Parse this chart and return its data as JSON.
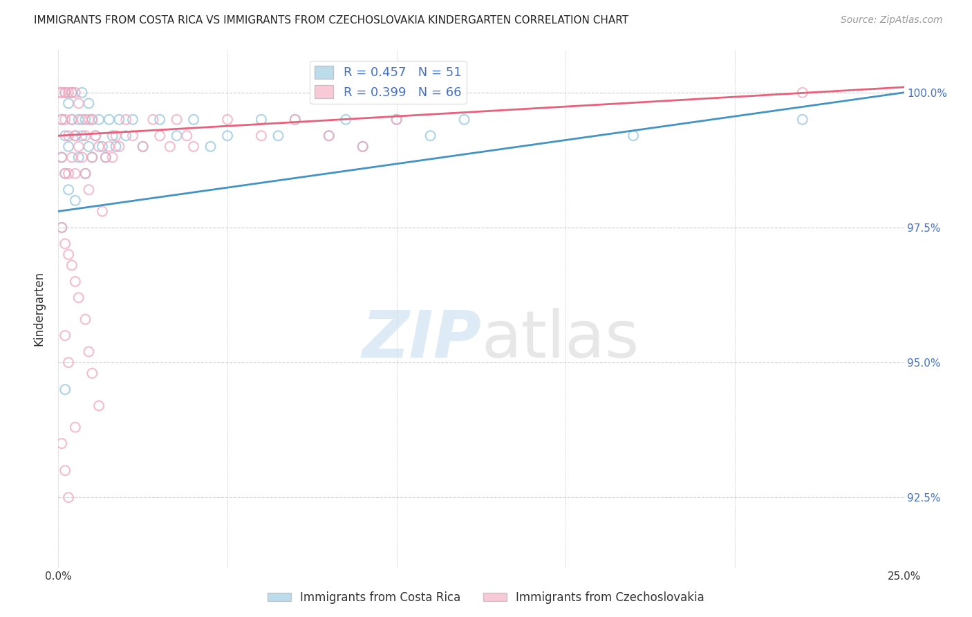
{
  "title": "IMMIGRANTS FROM COSTA RICA VS IMMIGRANTS FROM CZECHOSLOVAKIA KINDERGARTEN CORRELATION CHART",
  "source": "Source: ZipAtlas.com",
  "ylabel": "Kindergarten",
  "yticks": [
    92.5,
    95.0,
    97.5,
    100.0
  ],
  "ytick_labels": [
    "92.5%",
    "95.0%",
    "97.5%",
    "100.0%"
  ],
  "xmin": 0.0,
  "xmax": 0.25,
  "ymin": 91.2,
  "ymax": 100.8,
  "legend_blue_r": "R = 0.457",
  "legend_blue_n": "N = 51",
  "legend_pink_r": "R = 0.399",
  "legend_pink_n": "N = 66",
  "blue_color": "#92c5de",
  "pink_color": "#f4a6bc",
  "blue_line_color": "#4393c3",
  "pink_line_color": "#e8607a",
  "blue_line_x0": 0.0,
  "blue_line_y0": 97.8,
  "blue_line_x1": 0.25,
  "blue_line_y1": 100.0,
  "pink_line_x0": 0.0,
  "pink_line_y0": 99.2,
  "pink_line_x1": 0.25,
  "pink_line_y1": 100.1,
  "blue_scatter_x": [
    0.001,
    0.001,
    0.002,
    0.002,
    0.002,
    0.003,
    0.003,
    0.003,
    0.004,
    0.004,
    0.005,
    0.005,
    0.006,
    0.006,
    0.007,
    0.007,
    0.008,
    0.008,
    0.009,
    0.009,
    0.01,
    0.01,
    0.011,
    0.012,
    0.013,
    0.014,
    0.015,
    0.016,
    0.017,
    0.018,
    0.02,
    0.022,
    0.025,
    0.03,
    0.035,
    0.04,
    0.045,
    0.05,
    0.06,
    0.065,
    0.07,
    0.08,
    0.085,
    0.09,
    0.1,
    0.11,
    0.12,
    0.17,
    0.22,
    0.001,
    0.002
  ],
  "blue_scatter_y": [
    99.5,
    98.8,
    100.0,
    99.2,
    98.5,
    99.8,
    99.0,
    98.2,
    100.0,
    99.5,
    99.2,
    98.0,
    99.5,
    98.8,
    100.0,
    99.2,
    99.5,
    98.5,
    99.8,
    99.0,
    99.5,
    98.8,
    99.2,
    99.5,
    99.0,
    98.8,
    99.5,
    99.2,
    99.0,
    99.5,
    99.2,
    99.5,
    99.0,
    99.5,
    99.2,
    99.5,
    99.0,
    99.2,
    99.5,
    99.2,
    99.5,
    99.2,
    99.5,
    99.0,
    99.5,
    99.2,
    99.5,
    99.2,
    99.5,
    97.5,
    94.5
  ],
  "pink_scatter_x": [
    0.0005,
    0.001,
    0.001,
    0.001,
    0.002,
    0.002,
    0.002,
    0.003,
    0.003,
    0.003,
    0.004,
    0.004,
    0.004,
    0.005,
    0.005,
    0.005,
    0.006,
    0.006,
    0.007,
    0.007,
    0.008,
    0.008,
    0.009,
    0.009,
    0.01,
    0.01,
    0.011,
    0.012,
    0.013,
    0.014,
    0.015,
    0.016,
    0.017,
    0.018,
    0.02,
    0.022,
    0.025,
    0.028,
    0.03,
    0.033,
    0.035,
    0.038,
    0.04,
    0.05,
    0.06,
    0.07,
    0.08,
    0.09,
    0.1,
    0.22,
    0.001,
    0.002,
    0.003,
    0.004,
    0.005,
    0.006,
    0.008,
    0.009,
    0.01,
    0.012,
    0.001,
    0.002,
    0.003,
    0.005,
    0.002,
    0.003
  ],
  "pink_scatter_y": [
    100.0,
    100.0,
    99.5,
    98.8,
    100.0,
    99.5,
    98.5,
    100.0,
    99.2,
    98.5,
    100.0,
    99.5,
    98.8,
    100.0,
    99.2,
    98.5,
    99.8,
    99.0,
    99.5,
    98.8,
    99.2,
    98.5,
    99.5,
    98.2,
    99.5,
    98.8,
    99.2,
    99.0,
    97.8,
    98.8,
    99.0,
    98.8,
    99.2,
    99.0,
    99.5,
    99.2,
    99.0,
    99.5,
    99.2,
    99.0,
    99.5,
    99.2,
    99.0,
    99.5,
    99.2,
    99.5,
    99.2,
    99.0,
    99.5,
    100.0,
    97.5,
    97.2,
    97.0,
    96.8,
    96.5,
    96.2,
    95.8,
    95.2,
    94.8,
    94.2,
    93.5,
    93.0,
    92.5,
    93.8,
    95.5,
    95.0
  ]
}
